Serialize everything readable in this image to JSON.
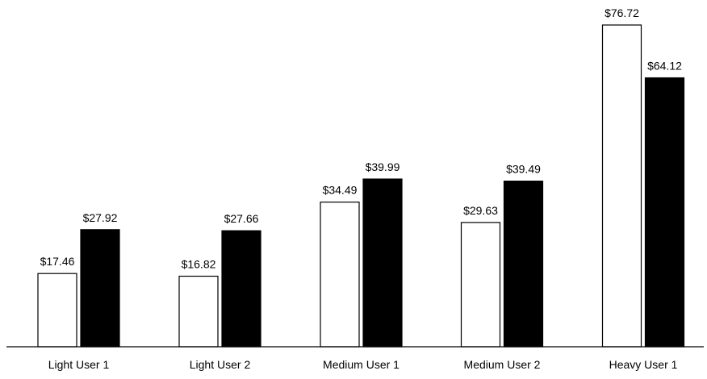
{
  "chart_data": {
    "type": "bar",
    "categories": [
      "Light User 1",
      "Light User 2",
      "Medium User 1",
      "Medium User 2",
      "Heavy User 1"
    ],
    "series": [
      {
        "values": [
          17.46,
          16.82,
          34.49,
          29.63,
          76.72
        ],
        "labels": [
          "$17.46",
          "$16.82",
          "$34.49",
          "$29.63",
          "$76.72"
        ],
        "fill": "#ffffff",
        "stroke": "#000000"
      },
      {
        "values": [
          27.92,
          27.66,
          39.99,
          39.49,
          64.12
        ],
        "labels": [
          "$27.92",
          "$27.66",
          "$39.99",
          "$39.49",
          "$64.12"
        ],
        "fill": "#000000",
        "stroke": "#000000"
      }
    ],
    "title": "",
    "xlabel": "",
    "ylabel": "",
    "ylim": [
      0,
      80
    ],
    "y_axis_visible": false,
    "grid": false,
    "legend": "none"
  }
}
